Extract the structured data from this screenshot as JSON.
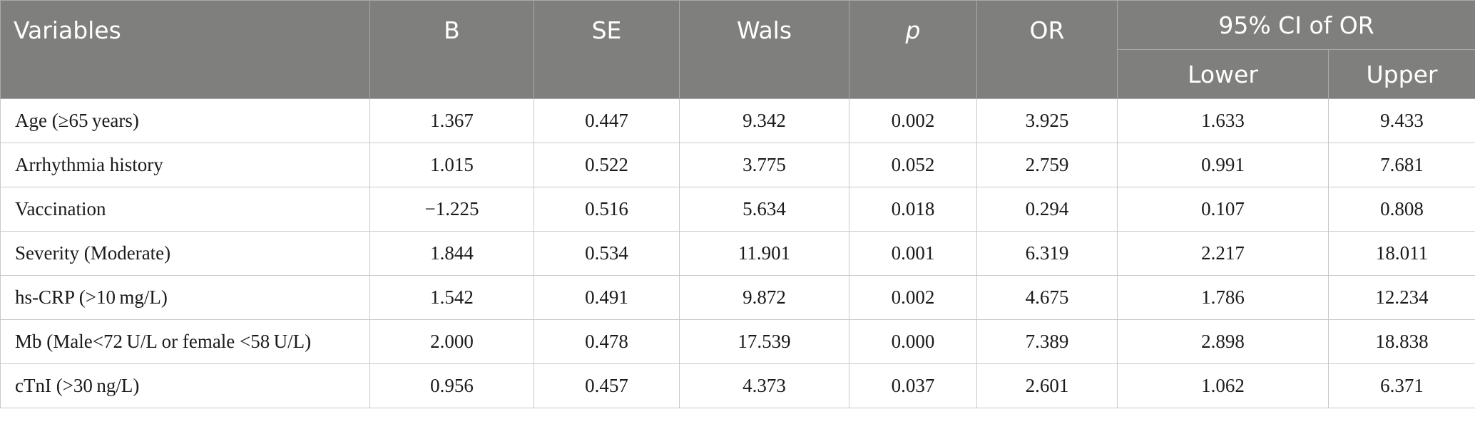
{
  "table": {
    "headers": {
      "variables": "Variables",
      "b": "B",
      "se": "SE",
      "wals": "Wals",
      "p": "p",
      "or": "OR",
      "ci": "95% CI of OR",
      "lower": "Lower",
      "upper": "Upper"
    },
    "rows": [
      {
        "variable": "Age (≥65 years)",
        "b": "1.367",
        "se": "0.447",
        "wals": "9.342",
        "p": "0.002",
        "or": "3.925",
        "lower": "1.633",
        "upper": "9.433"
      },
      {
        "variable": "Arrhythmia history",
        "b": "1.015",
        "se": "0.522",
        "wals": "3.775",
        "p": "0.052",
        "or": "2.759",
        "lower": "0.991",
        "upper": "7.681"
      },
      {
        "variable": "Vaccination",
        "b": "−1.225",
        "se": "0.516",
        "wals": "5.634",
        "p": "0.018",
        "or": "0.294",
        "lower": "0.107",
        "upper": "0.808"
      },
      {
        "variable": "Severity (Moderate)",
        "b": "1.844",
        "se": "0.534",
        "wals": "11.901",
        "p": "0.001",
        "or": "6.319",
        "lower": "2.217",
        "upper": "18.011"
      },
      {
        "variable": "hs-CRP (>10 mg/L)",
        "b": "1.542",
        "se": "0.491",
        "wals": "9.872",
        "p": "0.002",
        "or": "4.675",
        "lower": "1.786",
        "upper": "12.234"
      },
      {
        "variable": "Mb (Male<72 U/L or female <58 U/L)",
        "b": "2.000",
        "se": "0.478",
        "wals": "17.539",
        "p": "0.000",
        "or": "7.389",
        "lower": "2.898",
        "upper": "18.838"
      },
      {
        "variable": "cTnI (>30 ng/L)",
        "b": "0.956",
        "se": "0.457",
        "wals": "4.373",
        "p": "0.037",
        "or": "2.601",
        "lower": "1.062",
        "upper": "6.371"
      }
    ]
  }
}
